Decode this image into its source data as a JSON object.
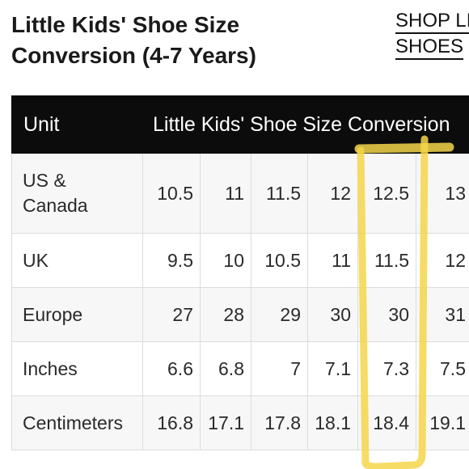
{
  "title": "Little Kids' Shoe Size Conversion (4-7 Years)",
  "shop_link": [
    "SHOP LI",
    "SHOES"
  ],
  "table": {
    "unit_header": "Unit",
    "span_header": "Little Kids' Shoe Size Conversion",
    "rows": [
      {
        "label": "US & Canada",
        "values": [
          "10.5",
          "11",
          "11.5",
          "12",
          "12.5",
          "13"
        ]
      },
      {
        "label": "UK",
        "values": [
          "9.5",
          "10",
          "10.5",
          "11",
          "11.5",
          "12"
        ]
      },
      {
        "label": "Europe",
        "values": [
          "27",
          "28",
          "29",
          "30",
          "30",
          "31"
        ]
      },
      {
        "label": "Inches",
        "values": [
          "6.6",
          "6.8",
          "7",
          "7.1",
          "7.3",
          "7.5"
        ]
      },
      {
        "label": "Centimeters",
        "values": [
          "16.8",
          "17.1",
          "17.8",
          "18.1",
          "18.4",
          "19.1"
        ]
      }
    ]
  },
  "highlight_color": "#f5d64a"
}
